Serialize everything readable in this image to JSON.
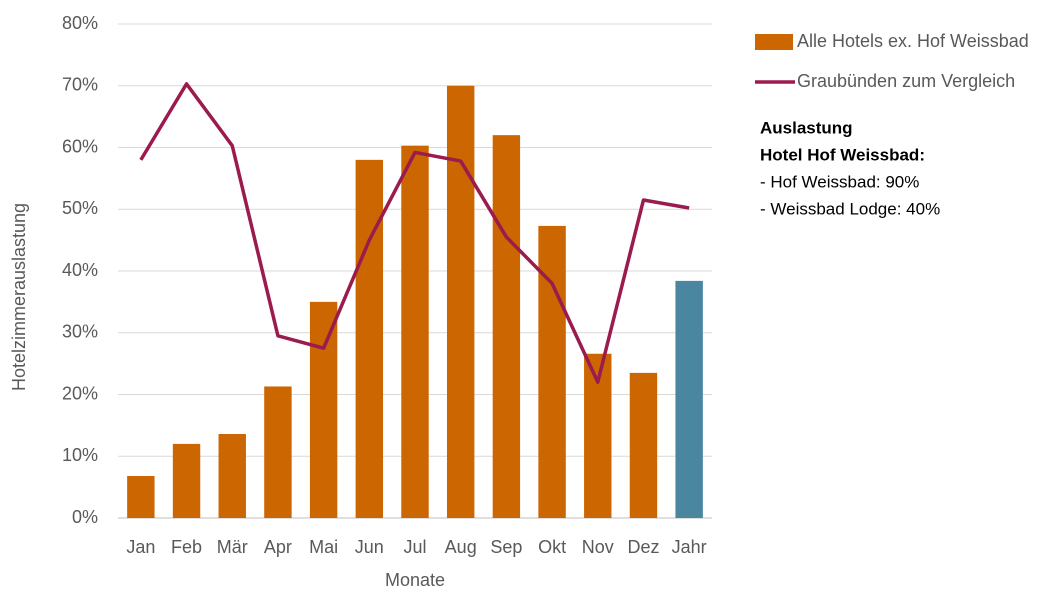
{
  "chart_data": {
    "type": "bar_line",
    "x_label": "Monate",
    "y_label": "Hotelzimmerauslastung",
    "categories": [
      "Jan",
      "Feb",
      "Mär",
      "Apr",
      "Mai",
      "Jun",
      "Jul",
      "Aug",
      "Sep",
      "Okt",
      "Nov",
      "Dez",
      "Jahr"
    ],
    "series": [
      {
        "name": "Alle Hotels ex. Hof Weissbad",
        "type": "bar",
        "color": "#cc6600",
        "colors": [
          "#cc6600",
          "#cc6600",
          "#cc6600",
          "#cc6600",
          "#cc6600",
          "#cc6600",
          "#cc6600",
          "#cc6600",
          "#cc6600",
          "#cc6600",
          "#cc6600",
          "#cc6600",
          "#4a86a0"
        ],
        "values": [
          6.8,
          12,
          13.6,
          21.3,
          35,
          58,
          60.3,
          70,
          62,
          47.3,
          26.6,
          23.5,
          38.4
        ]
      },
      {
        "name": "Graubünden zum Vergleich",
        "type": "line",
        "color": "#9b1b4e",
        "values": [
          58,
          70.3,
          60.3,
          29.5,
          27.5,
          45,
          59.2,
          57.8,
          45.5,
          38,
          22,
          51.5,
          50.2
        ]
      }
    ],
    "ylim": [
      0,
      80
    ],
    "yticks": [
      {
        "value": 0,
        "label": "0%"
      },
      {
        "value": 10,
        "label": "10%"
      },
      {
        "value": 20,
        "label": "20%"
      },
      {
        "value": 30,
        "label": "30%"
      },
      {
        "value": 40,
        "label": "40%"
      },
      {
        "value": 50,
        "label": "50%"
      },
      {
        "value": 60,
        "label": "60%"
      },
      {
        "value": 70,
        "label": "70%"
      },
      {
        "value": 80,
        "label": "80%"
      }
    ],
    "grid": true,
    "legend_position": "right",
    "annotation": {
      "lines": [
        "Auslastung",
        "Hotel Hof Weissbad:",
        "- Hof Weissbad: 90%",
        "- Weissbad Lodge: 40%"
      ],
      "bold_lines": 2
    }
  }
}
